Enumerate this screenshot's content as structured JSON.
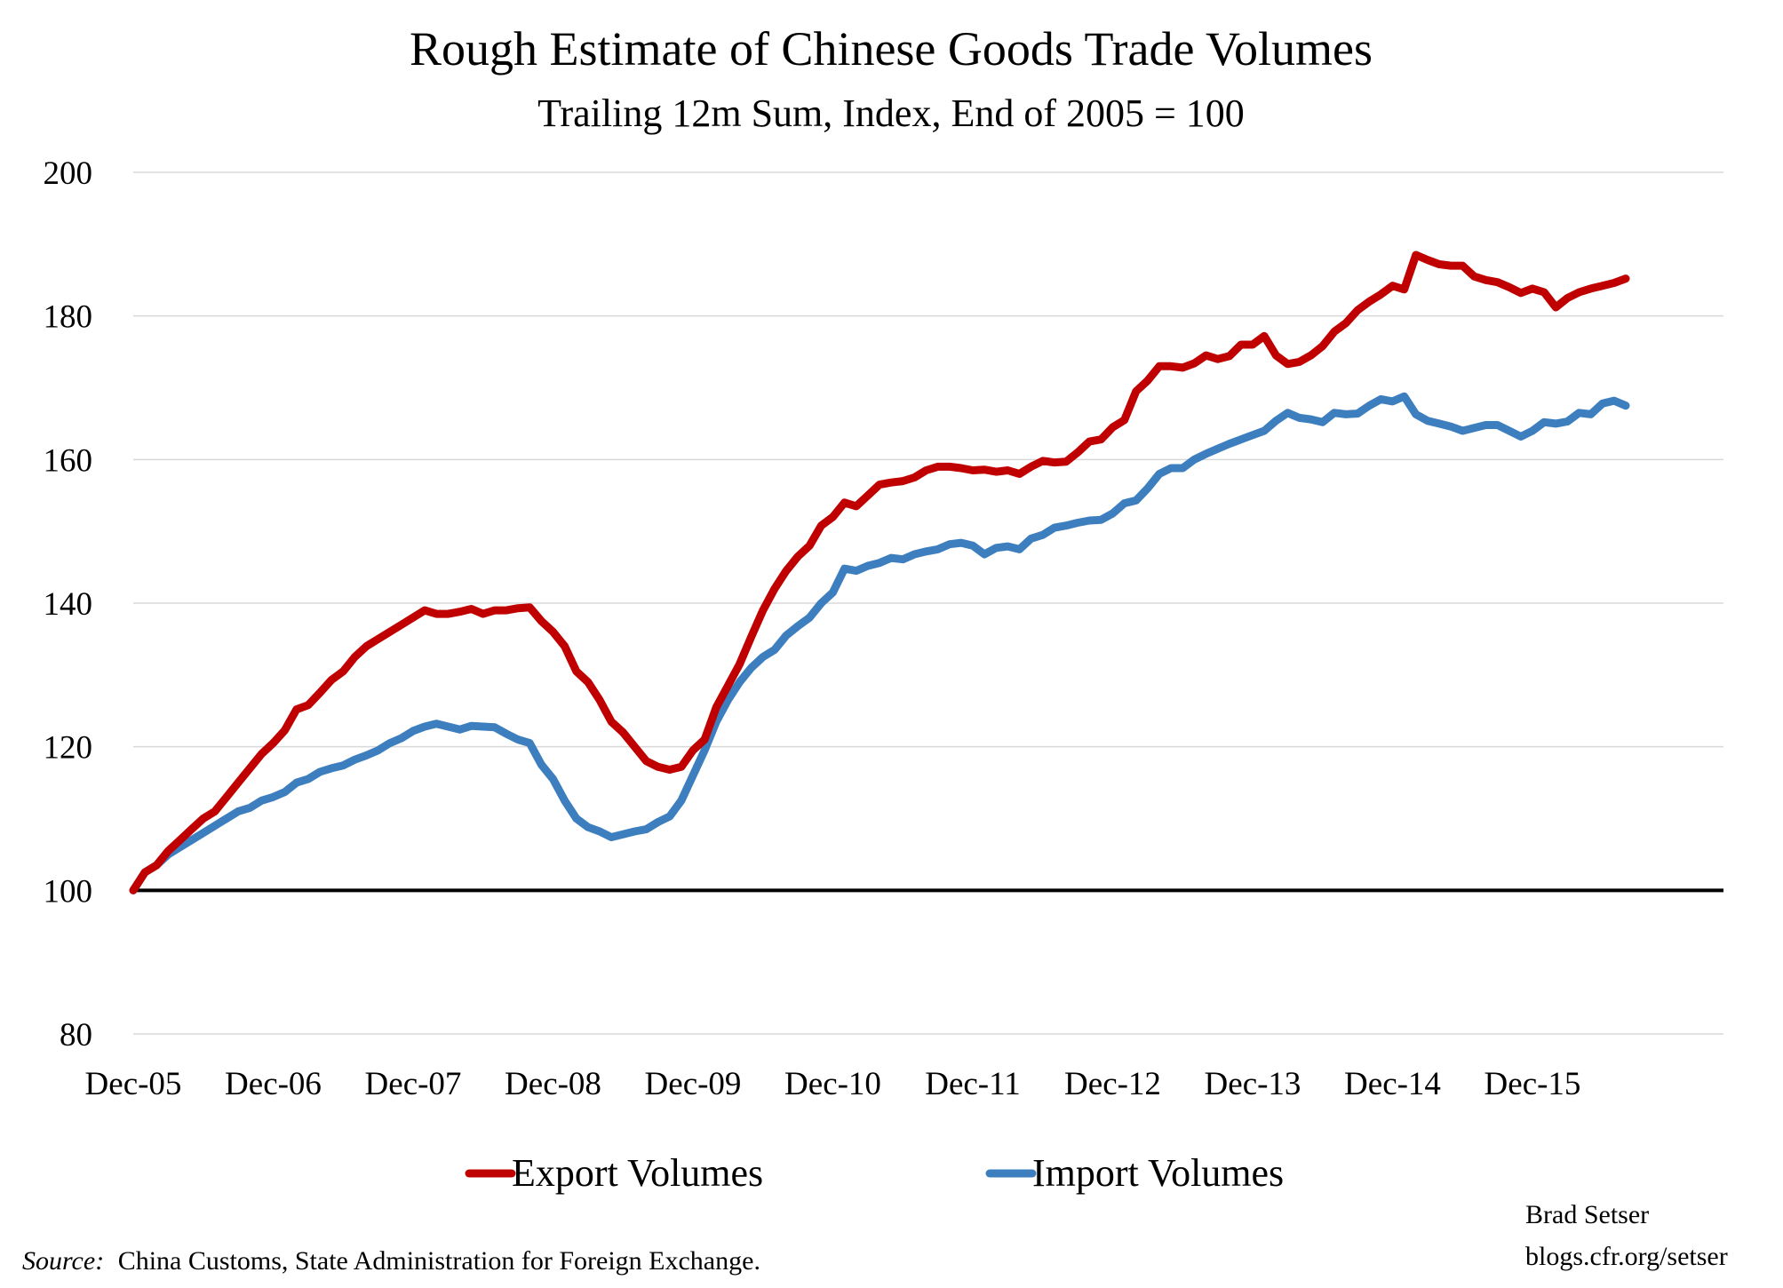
{
  "chart_data": {
    "type": "line",
    "title": "Rough Estimate of Chinese Goods Trade Volumes",
    "subtitle": "Trailing 12m Sum, Index, End of 2005 = 100",
    "ylim": [
      80,
      200
    ],
    "yticks": [
      80,
      100,
      120,
      140,
      160,
      180,
      200
    ],
    "xticks": [
      "Dec-05",
      "Dec-06",
      "Dec-07",
      "Dec-08",
      "Dec-09",
      "Dec-10",
      "Dec-11",
      "Dec-12",
      "Dec-13",
      "Dec-14",
      "Dec-15"
    ],
    "x_start": "Dec-05",
    "x_end": "Jul-16",
    "grid": true,
    "reference_line": 100,
    "legend_position": "bottom",
    "series": [
      {
        "name": "Export Volumes",
        "color": "#c00000",
        "values": [
          100,
          102.5,
          103.5,
          105.5,
          107,
          108.5,
          110,
          111,
          113,
          115,
          117,
          119,
          120.5,
          122.3,
          125.2,
          125.8,
          127.5,
          129.3,
          130.5,
          132.5,
          134,
          135,
          136,
          137,
          138,
          139,
          138.5,
          138.5,
          138.8,
          139.2,
          138.5,
          139,
          139,
          139.3,
          139.4,
          137.5,
          136,
          134,
          130.5,
          129,
          126.5,
          123.5,
          122,
          120,
          118,
          117.2,
          116.8,
          117.2,
          119.5,
          121,
          125.5,
          128.5,
          131.5,
          135.3,
          139,
          142,
          144.5,
          146.5,
          148,
          150.8,
          152,
          154,
          153.5,
          155,
          156.5,
          156.8,
          157,
          157.5,
          158.5,
          159,
          159,
          158.8,
          158.5,
          158.6,
          158.3,
          158.5,
          158,
          159,
          159.8,
          159.6,
          159.7,
          161,
          162.5,
          162.8,
          164.5,
          165.5,
          169.5,
          171,
          173,
          173,
          172.8,
          173.4,
          174.5,
          174,
          174.4,
          176,
          176,
          177.2,
          174.5,
          173.3,
          173.6,
          174.5,
          175.8,
          177.8,
          179,
          180.8,
          182,
          183,
          184.2,
          183.7,
          188.5,
          187.8,
          187.2,
          187,
          187,
          185.5,
          185,
          184.7,
          184,
          183.2,
          183.8,
          183.3,
          181.2,
          182.5,
          183.3,
          183.8,
          184.2,
          184.6,
          185.2
        ]
      },
      {
        "name": "Import Volumes",
        "color": "#3d7ebf",
        "values": [
          100,
          102.5,
          103.5,
          105,
          106,
          107,
          108,
          109,
          110,
          111,
          111.5,
          112.5,
          113,
          113.7,
          115,
          115.5,
          116.5,
          117,
          117.4,
          118.2,
          118.8,
          119.5,
          120.5,
          121.2,
          122.2,
          122.8,
          123.2,
          122.8,
          122.4,
          122.9,
          122.8,
          122.7,
          121.8,
          121,
          120.5,
          117.5,
          115.5,
          112.5,
          110,
          108.8,
          108.2,
          107.4,
          107.8,
          108.2,
          108.5,
          109.5,
          110.3,
          112.5,
          116,
          119.5,
          123.5,
          126.5,
          129,
          131,
          132.5,
          133.5,
          135.5,
          136.8,
          138,
          140,
          141.5,
          144.8,
          144.5,
          145.2,
          145.6,
          146.3,
          146.1,
          146.8,
          147.2,
          147.5,
          148.2,
          148.4,
          148,
          146.8,
          147.7,
          147.9,
          147.5,
          149,
          149.5,
          150.5,
          150.8,
          151.2,
          151.5,
          151.6,
          152.5,
          153.9,
          154.3,
          156,
          158,
          158.8,
          158.8,
          160,
          160.8,
          161.5,
          162.2,
          162.8,
          163.4,
          164,
          165.4,
          166.5,
          165.8,
          165.6,
          165.2,
          166.5,
          166.3,
          166.4,
          167.5,
          168.4,
          168.1,
          168.8,
          166.3,
          165.4,
          165,
          164.6,
          164,
          164.4,
          164.8,
          164.8,
          164,
          163.2,
          164,
          165.2,
          165,
          165.3,
          166.5,
          166.3,
          167.8,
          168.2,
          167.5
        ]
      }
    ],
    "source_label": "Source:",
    "source_text": "China Customs, State Administration for Foreign Exchange.",
    "credit_name": "Brad Setser",
    "credit_url": "blogs.cfr.org/setser"
  }
}
